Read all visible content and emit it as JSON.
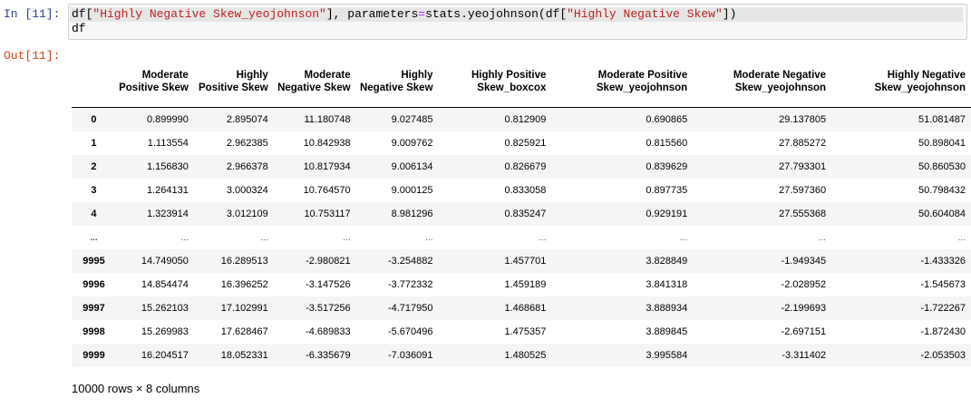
{
  "cell": {
    "in_prompt": "In [11]:",
    "out_prompt": "Out[11]:",
    "code": {
      "line1": [
        {
          "t": "df[",
          "c": "plain"
        },
        {
          "t": "\"Highly Negative Skew_yeojohnson\"",
          "c": "str"
        },
        {
          "t": "], parameters",
          "c": "plain"
        },
        {
          "t": "=",
          "c": "op"
        },
        {
          "t": "stats.yeojohnson(df[",
          "c": "plain"
        },
        {
          "t": "\"Highly Negative Skew\"",
          "c": "str"
        },
        {
          "t": "])",
          "c": "plain"
        }
      ],
      "line2": "df"
    }
  },
  "table": {
    "columns": [
      "",
      "Moderate Positive Skew",
      "Highly Positive Skew",
      "Moderate Negative Skew",
      "Highly Negative Skew",
      "Highly Positive Skew_boxcox",
      "Moderate Positive Skew_yeojohnson",
      "Moderate Negative Skew_yeojohnson",
      "Highly Negative Skew_yeojohnson"
    ],
    "rows": [
      [
        "0",
        "0.899990",
        "2.895074",
        "11.180748",
        "9.027485",
        "0.812909",
        "0.690865",
        "29.137805",
        "51.081487"
      ],
      [
        "1",
        "1.113554",
        "2.962385",
        "10.842938",
        "9.009762",
        "0.825921",
        "0.815560",
        "27.885272",
        "50.898041"
      ],
      [
        "2",
        "1.156830",
        "2.966378",
        "10.817934",
        "9.006134",
        "0.826679",
        "0.839629",
        "27.793301",
        "50.860530"
      ],
      [
        "3",
        "1.264131",
        "3.000324",
        "10.764570",
        "9.000125",
        "0.833058",
        "0.897735",
        "27.597360",
        "50.798432"
      ],
      [
        "4",
        "1.323914",
        "3.012109",
        "10.753117",
        "8.981296",
        "0.835247",
        "0.929191",
        "27.555368",
        "50.604084"
      ],
      [
        "...",
        "...",
        "...",
        "...",
        "...",
        "...",
        "...",
        "...",
        "..."
      ],
      [
        "9995",
        "14.749050",
        "16.289513",
        "-2.980821",
        "-3.254882",
        "1.457701",
        "3.828849",
        "-1.949345",
        "-1.433326"
      ],
      [
        "9996",
        "14.854474",
        "16.396252",
        "-3.147526",
        "-3.772332",
        "1.459189",
        "3.841318",
        "-2.028952",
        "-1.545673"
      ],
      [
        "9997",
        "15.262103",
        "17.102991",
        "-3.517256",
        "-4.717950",
        "1.468681",
        "3.888934",
        "-2.199693",
        "-1.722267"
      ],
      [
        "9998",
        "15.269983",
        "17.628467",
        "-4.689833",
        "-5.670496",
        "1.475357",
        "3.889845",
        "-2.697151",
        "-1.872430"
      ],
      [
        "9999",
        "16.204517",
        "18.052331",
        "-6.335679",
        "-7.036091",
        "1.480525",
        "3.995584",
        "-3.311402",
        "-2.053503"
      ]
    ],
    "shape_note": "10000 rows × 8 columns"
  }
}
